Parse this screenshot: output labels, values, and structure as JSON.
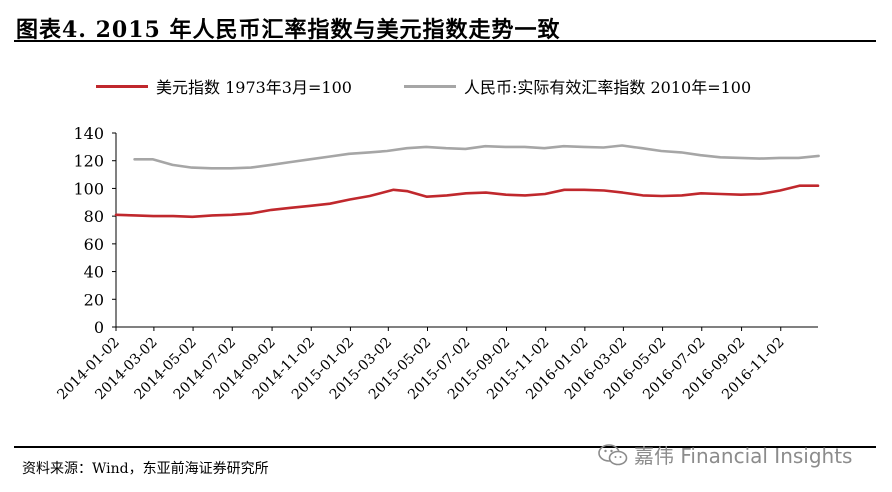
{
  "header": {
    "title": "图表4.    2015 年人民币汇率指数与美元指数走势一致"
  },
  "footer": {
    "source": "资料来源：Wind，东亚前海证券研究所",
    "watermark": "嘉伟 Financial Insights",
    "watermark_icon": "wechat-icon"
  },
  "chart_data": {
    "type": "line",
    "title": "",
    "xlabel": "",
    "ylabel": "",
    "ylim": [
      0,
      140
    ],
    "yticks": [
      0,
      20,
      40,
      60,
      80,
      100,
      120,
      140
    ],
    "x_start": "2014-01-02",
    "x_end": "2016-12-30",
    "x_tick_labels": [
      "2014-01-02",
      "2014-03-02",
      "2014-05-02",
      "2014-07-02",
      "2014-09-02",
      "2014-11-02",
      "2015-01-02",
      "2015-03-02",
      "2015-05-02",
      "2015-07-02",
      "2015-09-02",
      "2015-11-02",
      "2016-01-02",
      "2016-03-02",
      "2016-05-02",
      "2016-07-02",
      "2016-09-02",
      "2016-11-02"
    ],
    "grid": false,
    "legend_position": "top",
    "series": [
      {
        "name": "美元指数 1973年3月=100",
        "color": "#c0282d",
        "x": [
          "2014-01-02",
          "2014-02-01",
          "2014-03-01",
          "2014-04-01",
          "2014-05-01",
          "2014-06-01",
          "2014-07-01",
          "2014-08-01",
          "2014-09-01",
          "2014-10-01",
          "2014-11-01",
          "2014-12-01",
          "2015-01-01",
          "2015-02-01",
          "2015-03-10",
          "2015-04-01",
          "2015-05-01",
          "2015-06-01",
          "2015-07-01",
          "2015-08-01",
          "2015-09-01",
          "2015-10-01",
          "2015-11-01",
          "2015-12-01",
          "2016-01-01",
          "2016-02-01",
          "2016-03-01",
          "2016-04-01",
          "2016-05-01",
          "2016-06-01",
          "2016-07-01",
          "2016-08-01",
          "2016-09-01",
          "2016-10-01",
          "2016-11-01",
          "2016-12-01",
          "2016-12-30"
        ],
        "values": [
          81,
          80.5,
          80,
          80,
          79.5,
          80.5,
          81,
          82,
          84.5,
          86,
          87.5,
          89,
          92,
          94.5,
          99,
          98,
          94,
          95,
          96.5,
          97,
          95.5,
          95,
          96,
          99,
          99,
          98.5,
          97,
          95,
          94.5,
          95,
          96.5,
          96,
          95.5,
          96,
          98.5,
          102,
          102
        ]
      },
      {
        "name": "人民币:实际有效汇率指数 2010年=100",
        "color": "#a6a6a6",
        "x": [
          "2014-01-31",
          "2014-02-28",
          "2014-03-31",
          "2014-04-30",
          "2014-05-31",
          "2014-06-30",
          "2014-07-31",
          "2014-08-31",
          "2014-09-30",
          "2014-10-31",
          "2014-11-30",
          "2014-12-31",
          "2015-01-31",
          "2015-02-28",
          "2015-03-31",
          "2015-04-30",
          "2015-05-31",
          "2015-06-30",
          "2015-07-31",
          "2015-08-31",
          "2015-09-30",
          "2015-10-31",
          "2015-11-30",
          "2015-12-31",
          "2016-01-31",
          "2016-02-29",
          "2016-03-31",
          "2016-04-30",
          "2016-05-31",
          "2016-06-30",
          "2016-07-31",
          "2016-08-31",
          "2016-09-30",
          "2016-10-31",
          "2016-11-30",
          "2016-12-31"
        ],
        "values": [
          121,
          121,
          117,
          115,
          114.5,
          114.5,
          115,
          117,
          119,
          121,
          123,
          125,
          126,
          127,
          129,
          130,
          129,
          128.5,
          130.5,
          130,
          130,
          129,
          130.5,
          130,
          129.5,
          131,
          129,
          127,
          126,
          124,
          122.5,
          122,
          121.5,
          122,
          122,
          123.5
        ]
      }
    ]
  }
}
